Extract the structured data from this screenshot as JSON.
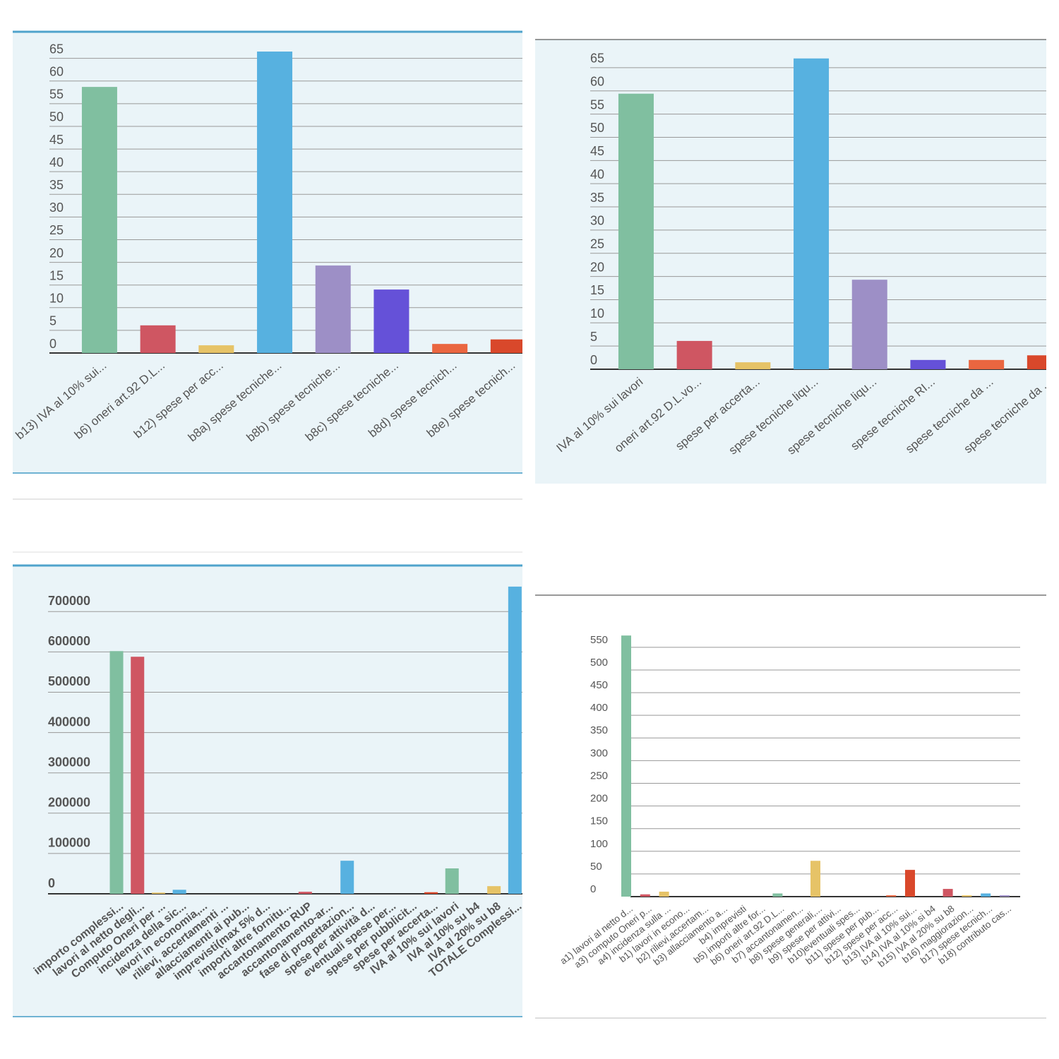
{
  "chart_data": [
    {
      "type": "bar",
      "categories": [
        "b13) IVA al 10% sui...",
        "b6) oneri art.92 D.L...",
        "b12) spese per acc...",
        "b8a) spese tecniche...",
        "b8b) spese tecniche...",
        "b8c) spese tecniche...",
        "b8d) spese tecnich...",
        "b8e) spese tecnich..."
      ],
      "values": [
        58.7,
        6.1,
        1.7,
        66.5,
        19.3,
        14,
        2,
        3
      ],
      "ylim": [
        0,
        68
      ],
      "yticks": [
        0,
        5,
        10,
        15,
        20,
        25,
        30,
        35,
        40,
        45,
        50,
        55,
        60,
        65
      ],
      "grid": true,
      "colors": [
        "#80bfa0",
        "#cf5662",
        "#e6c367",
        "#57b1e0",
        "#9d8fc6",
        "#6551d8",
        "#ea6640",
        "#d9482b"
      ]
    },
    {
      "type": "bar",
      "categories": [
        "IVA al 10% sui lavori",
        "oneri art.92 D.L.vo...",
        "spese per accerta...",
        "spese tecniche liqu...",
        "spese tecniche liqu...",
        "spese tecniche RI...",
        "spese tecniche da ...",
        "spese tecniche da ..."
      ],
      "values": [
        59.4,
        6.1,
        1.5,
        67,
        19.3,
        2,
        2,
        3
      ],
      "ylim": [
        0,
        68
      ],
      "yticks": [
        0,
        5,
        10,
        15,
        20,
        25,
        30,
        35,
        40,
        45,
        50,
        55,
        60,
        65
      ],
      "grid": true,
      "colors": [
        "#80bfa0",
        "#cf5662",
        "#e6c367",
        "#57b1e0",
        "#9d8fc6",
        "#6551d8",
        "#ea6640",
        "#d9482b"
      ]
    },
    {
      "type": "bar",
      "categories": [
        "importo complessi...",
        "lavori al netto degli...",
        "Computo Oneri per ...",
        "incidenza della sic...",
        "lavori in economia,...",
        "rilievi, accertamenti ...",
        "allacciamenti ai pub...",
        "imprevisti(max 5% d...",
        "importi altre fornitu...",
        "accantonamento RUP",
        "accantonamento-ar...",
        "fase di progettazion...",
        "spese per attività d...",
        "eventuali spese per...",
        "spese per pubblicit...",
        "spese per accerta...",
        "IVA al 10% sui lavori",
        "IVA al 10% su b4",
        "IVA al 20% su b8",
        "TOTALE Complessi..."
      ],
      "values": [
        602000,
        588000,
        3000,
        10000,
        0,
        0,
        0,
        0,
        0,
        5000,
        0,
        82000,
        0,
        0,
        0,
        4000,
        63000,
        0,
        19000,
        762000
      ],
      "ylim": [
        0,
        780000
      ],
      "yticks": [
        0,
        100000,
        200000,
        300000,
        400000,
        500000,
        600000,
        700000
      ],
      "grid": true,
      "colors": [
        "#80bfa0",
        "#cf5662",
        "#e6c367",
        "#57b1e0",
        "#9d8fc6",
        "#6551d8",
        "#ea6640",
        "#d9482b"
      ]
    },
    {
      "type": "bar",
      "categories": [
        "a1) lavori al netto d...",
        "a3) computo Oneri p...",
        "a4) incidenza sulla ...",
        "b1) lavori in econo...",
        "b2) rilievi,accertam...",
        "b3) allacciamento a...",
        "b4) imprevisti",
        "b5) importi altre for...",
        "b6) oneri art.92 D.L...",
        "b7) accantonamen...",
        "b8) spese generali,...",
        "b9) spese per attivi...",
        "b10)eventuali spes...",
        "b11) spese per pub...",
        "b12) spese per acc...",
        "b13) IVA al 10% sui...",
        "b14) IVA al 10% si b4",
        "b15) IVA al 20% su b8",
        "b16) maggiorazion...",
        "b17) spese tecnich...",
        "b18) contributo cas..."
      ],
      "values": [
        576,
        5,
        11,
        0,
        0,
        0,
        0,
        0,
        7,
        0,
        79,
        0,
        0,
        0,
        3,
        59,
        0,
        17,
        3,
        7,
        3
      ],
      "ylim": [
        0,
        580
      ],
      "yticks": [
        0,
        50,
        100,
        150,
        200,
        250,
        300,
        350,
        400,
        450,
        500,
        550
      ],
      "grid": true,
      "colors": [
        "#80bfa0",
        "#cf5662",
        "#e6c367",
        "#57b1e0",
        "#9d8fc6",
        "#6551d8",
        "#ea6640",
        "#d9482b"
      ]
    }
  ]
}
